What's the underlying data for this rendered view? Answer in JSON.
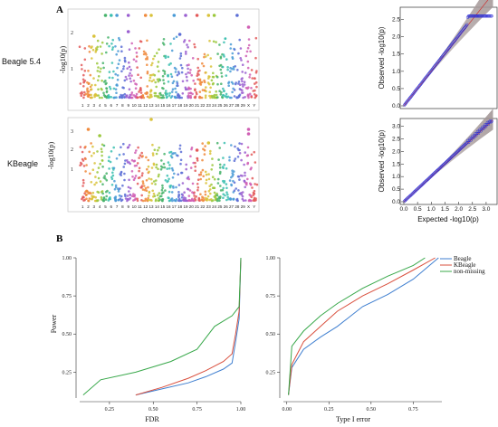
{
  "panel_a": {
    "letter": "A",
    "rows": [
      {
        "label": "Beagle 5.4",
        "ylabel": "-log10(p)",
        "yticks": [
          "1",
          "2"
        ]
      },
      {
        "label": "KBeagle",
        "ylabel": "-log10(p)",
        "yticks": [
          "1",
          "2",
          "3"
        ]
      }
    ],
    "xlabel": "chromosome",
    "chromosomes": [
      "1",
      "2",
      "3",
      "4",
      "5",
      "6",
      "7",
      "8",
      "9",
      "10",
      "11",
      "12",
      "13",
      "14",
      "15",
      "16",
      "17",
      "18",
      "19",
      "20",
      "21",
      "22",
      "23",
      "24",
      "25",
      "26",
      "27",
      "28",
      "29",
      "X",
      "Y"
    ],
    "qq_ylabel": "Observed -log10(p)",
    "qq_xlabel": "Expected -log10(p)",
    "qq_top_yticks": [
      "0.0",
      "0.5",
      "1.0",
      "1.5",
      "2.0",
      "2.5"
    ],
    "qq_bottom_yticks": [
      "0.0",
      "0.5",
      "1.0",
      "1.5",
      "2.0",
      "2.5",
      "3.0"
    ],
    "qq_xticks": [
      "0.0",
      "0.5",
      "1.0",
      "1.5",
      "2.0",
      "2.5",
      "3.0"
    ]
  },
  "panel_b": {
    "letter": "B"
  },
  "chart_data": [
    {
      "type": "line",
      "ylabel": "Power",
      "xlabel": "FDR",
      "xticks": [
        "0.25",
        "0.50",
        "0.75",
        "1.00"
      ],
      "yticks": [
        "0.25",
        "0.50",
        "0.75",
        "1.00"
      ],
      "xlim": [
        0.08,
        1.0
      ],
      "ylim": [
        0.08,
        1.0
      ],
      "series": [
        {
          "name": "Beagle",
          "color": "#3f7fd0",
          "x": [
            0.4,
            0.55,
            0.7,
            0.8,
            0.9,
            0.95,
            0.97,
            0.99,
            1.0
          ],
          "y": [
            0.1,
            0.14,
            0.18,
            0.22,
            0.27,
            0.31,
            0.45,
            0.6,
            1.0
          ]
        },
        {
          "name": "KBeagle",
          "color": "#d94f3d",
          "x": [
            0.4,
            0.55,
            0.7,
            0.8,
            0.9,
            0.95,
            0.97,
            0.99,
            1.0
          ],
          "y": [
            0.1,
            0.15,
            0.21,
            0.26,
            0.32,
            0.37,
            0.5,
            0.65,
            1.0
          ]
        },
        {
          "name": "non-missing",
          "color": "#38a84a",
          "x": [
            0.1,
            0.2,
            0.4,
            0.6,
            0.75,
            0.85,
            0.95,
            0.99,
            1.0
          ],
          "y": [
            0.1,
            0.2,
            0.25,
            0.32,
            0.4,
            0.55,
            0.62,
            0.68,
            1.0
          ]
        }
      ]
    },
    {
      "type": "line",
      "xlabel": "Type I error",
      "xticks": [
        "0.00",
        "0.25",
        "0.50",
        "0.75"
      ],
      "yticks": [
        "0.25",
        "0.50",
        "0.75",
        "1.00"
      ],
      "xlim": [
        -0.02,
        0.92
      ],
      "ylim": [
        0.08,
        1.0
      ],
      "legend": "top-right",
      "series": [
        {
          "name": "Beagle",
          "color": "#3f7fd0",
          "x": [
            0.01,
            0.03,
            0.1,
            0.2,
            0.3,
            0.45,
            0.6,
            0.75,
            0.9
          ],
          "y": [
            0.1,
            0.28,
            0.4,
            0.48,
            0.55,
            0.68,
            0.76,
            0.86,
            1.0
          ]
        },
        {
          "name": "KBeagle",
          "color": "#d94f3d",
          "x": [
            0.01,
            0.03,
            0.1,
            0.2,
            0.3,
            0.45,
            0.6,
            0.75,
            0.88
          ],
          "y": [
            0.1,
            0.3,
            0.45,
            0.55,
            0.65,
            0.75,
            0.83,
            0.92,
            1.0
          ]
        },
        {
          "name": "non-missing",
          "color": "#38a84a",
          "x": [
            0.01,
            0.03,
            0.1,
            0.2,
            0.3,
            0.45,
            0.6,
            0.75,
            0.82
          ],
          "y": [
            0.1,
            0.42,
            0.52,
            0.62,
            0.7,
            0.8,
            0.88,
            0.95,
            1.0
          ]
        }
      ]
    }
  ]
}
